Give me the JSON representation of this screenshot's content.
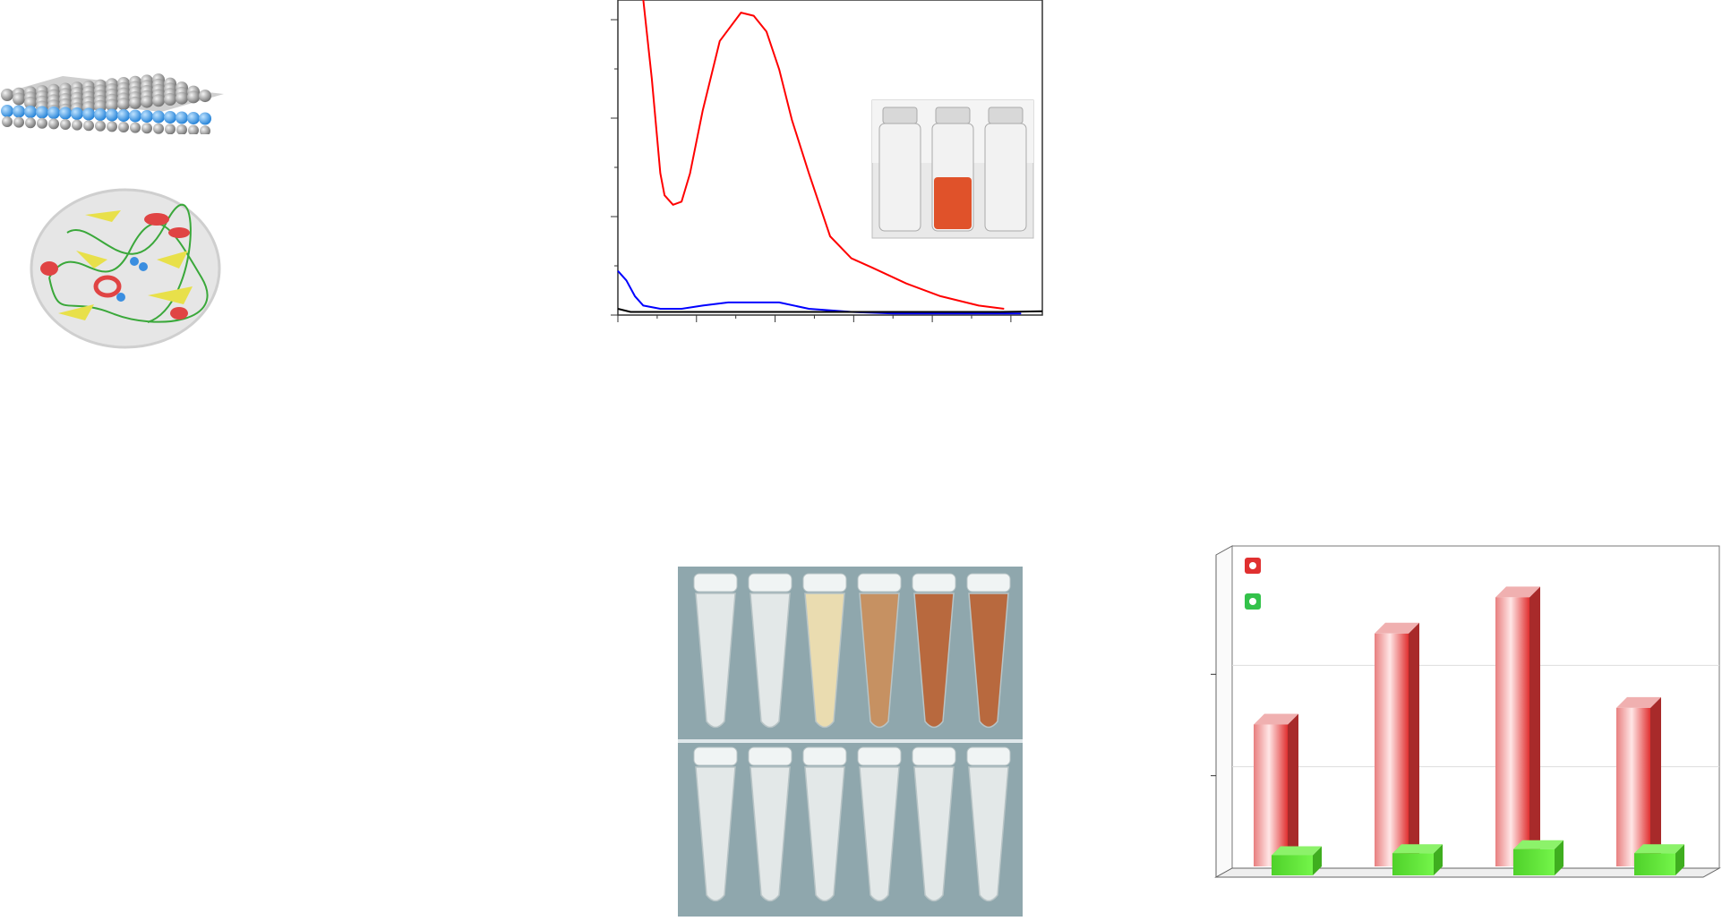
{
  "colors": {
    "red_trace": "#ff0000",
    "blue_trace": "#0000ff",
    "black_trace": "#000000",
    "bar_red": "#e03030",
    "bar_green": "#55e033",
    "layer_gray": "#8a8a8a",
    "layer_blue": "#2f8fe0"
  },
  "icons": {
    "nanosheet": "layered-nanosheet-illustration",
    "enzyme": "protein-ribbon-structure-illustration",
    "vials_inset": "three-glass-vials-photo",
    "tubes": "microcentrifuge-tubes-photo"
  },
  "figure": {
    "uv_inset_vials": [
      "clear",
      "orange-red",
      "clear"
    ],
    "tube_rows": [
      {
        "tubes": [
          "clear",
          "clear",
          "pale-yellow",
          "light-brown",
          "brown",
          "brown"
        ]
      },
      {
        "tubes": [
          "clear",
          "clear",
          "clear",
          "clear",
          "clear",
          "clear"
        ]
      }
    ]
  },
  "chart_data": [
    {
      "type": "line",
      "title": "",
      "xlabel": "",
      "ylabel": "",
      "xlim": [
        0,
        1
      ],
      "ylim": [
        0,
        1
      ],
      "grid": false,
      "series": [
        {
          "color": "#ff0000",
          "x": [
            0.06,
            0.08,
            0.1,
            0.11,
            0.13,
            0.15,
            0.17,
            0.2,
            0.24,
            0.29,
            0.32,
            0.35,
            0.38,
            0.41,
            0.45,
            0.5,
            0.55,
            0.6,
            0.68,
            0.76,
            0.85,
            0.91
          ],
          "y": [
            1.0,
            0.75,
            0.45,
            0.38,
            0.35,
            0.36,
            0.45,
            0.65,
            0.87,
            0.96,
            0.95,
            0.9,
            0.78,
            0.62,
            0.45,
            0.25,
            0.18,
            0.15,
            0.1,
            0.06,
            0.03,
            0.02
          ]
        },
        {
          "color": "#0000ff",
          "x": [
            0.0,
            0.02,
            0.04,
            0.06,
            0.1,
            0.15,
            0.2,
            0.26,
            0.32,
            0.38,
            0.45,
            0.55,
            0.65,
            0.75,
            0.85,
            0.95
          ],
          "y": [
            0.14,
            0.11,
            0.06,
            0.03,
            0.02,
            0.02,
            0.03,
            0.04,
            0.04,
            0.04,
            0.02,
            0.01,
            0.005,
            0.005,
            0.005,
            0.005
          ]
        },
        {
          "color": "#000000",
          "x": [
            0.0,
            0.03,
            0.1,
            0.3,
            0.5,
            0.7,
            0.9,
            1.0
          ],
          "y": [
            0.02,
            0.01,
            0.01,
            0.01,
            0.01,
            0.01,
            0.01,
            0.012
          ]
        }
      ]
    },
    {
      "type": "bar",
      "title": "",
      "xlabel": "",
      "ylabel": "",
      "ylim": [
        0,
        3
      ],
      "grid": true,
      "legend": "top-left",
      "categories": [
        "",
        "",
        "",
        ""
      ],
      "series": [
        {
          "color": "#e03030",
          "values": [
            1.45,
            2.38,
            2.75,
            1.62
          ]
        },
        {
          "color": "#55e033",
          "values": [
            0.2,
            0.22,
            0.26,
            0.22
          ]
        }
      ]
    }
  ]
}
